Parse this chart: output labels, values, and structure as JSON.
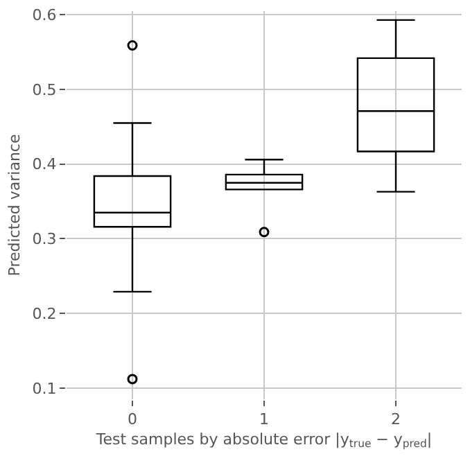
{
  "chart_data": {
    "type": "box",
    "xlabel": "Test samples by absolute error |y$_{true}$ − y$_{pred}$|",
    "ylabel": "Predicted variance",
    "categories": [
      "0",
      "1",
      "2"
    ],
    "boxes": [
      {
        "low": 0.229,
        "q1": 0.316,
        "median": 0.335,
        "q3": 0.384,
        "high": 0.455,
        "outliers": [
          0.559,
          0.112
        ]
      },
      {
        "low": 0.366,
        "q1": 0.366,
        "median": 0.375,
        "q3": 0.386,
        "high": 0.406,
        "outliers": [
          0.309
        ]
      },
      {
        "low": 0.363,
        "q1": 0.417,
        "median": 0.471,
        "q3": 0.542,
        "high": 0.593
      }
    ],
    "color": "#000000",
    "ylim": [
      0.085,
      0.605
    ],
    "yticks": [
      0.1,
      0.2,
      0.3,
      0.4,
      0.5,
      0.6
    ],
    "grid": true,
    "marker": "circle"
  }
}
